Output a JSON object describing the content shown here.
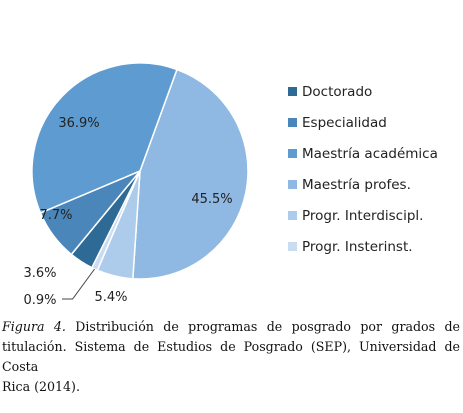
{
  "chart_data": {
    "type": "pie",
    "title": "",
    "slices": [
      {
        "label": "Doctorado",
        "value": 3.6,
        "color": "#2e6a96",
        "display": "3.6%"
      },
      {
        "label": "Especialidad",
        "value": 7.7,
        "color": "#4a86b9",
        "display": "7.7%"
      },
      {
        "label": "Maestría académica",
        "value": 36.9,
        "color": "#5e9bd1",
        "display": "36.9%"
      },
      {
        "label": "Maestría profes.",
        "value": 45.5,
        "color": "#8fb8e2",
        "display": "45.5%"
      },
      {
        "label": "Progr. Interdiscipl.",
        "value": 5.4,
        "color": "#adcbeb",
        "display": "5.4%"
      },
      {
        "label": "Progr. Insterinst.",
        "value": 0.9,
        "color": "#c9dcf1",
        "display": "0.9%"
      }
    ],
    "legend_position": "right"
  },
  "caption": {
    "figure_label": "Figura 4.",
    "line1_rest": " Distribución de programas de posgrado por grados de",
    "line2": "titulación. Sistema de Estudios de Posgrado (SEP), Universidad de Costa",
    "line3": "Rica (2014)."
  }
}
